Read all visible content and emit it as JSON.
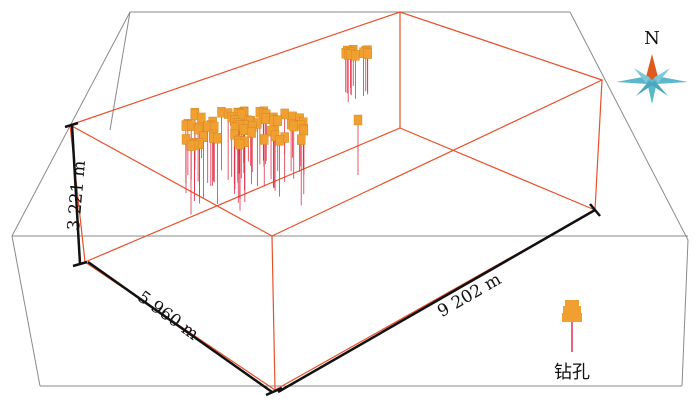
{
  "dimensions": {
    "height_label": "3 221 m",
    "width_label": "5 960 m",
    "length_label": "9 202 m"
  },
  "compass": {
    "north_label": "N",
    "icon": "compass-rose-icon"
  },
  "legend": {
    "label": "钻孔",
    "icon": "borehole-icon"
  },
  "colors": {
    "frame": "#8a8a8a",
    "model_box": "#e8502a",
    "borehole_head": "#f0a030",
    "borehole_shaft": "#e0304a",
    "compass_north": "#e05a20",
    "compass_body": "#5bb8cc"
  }
}
